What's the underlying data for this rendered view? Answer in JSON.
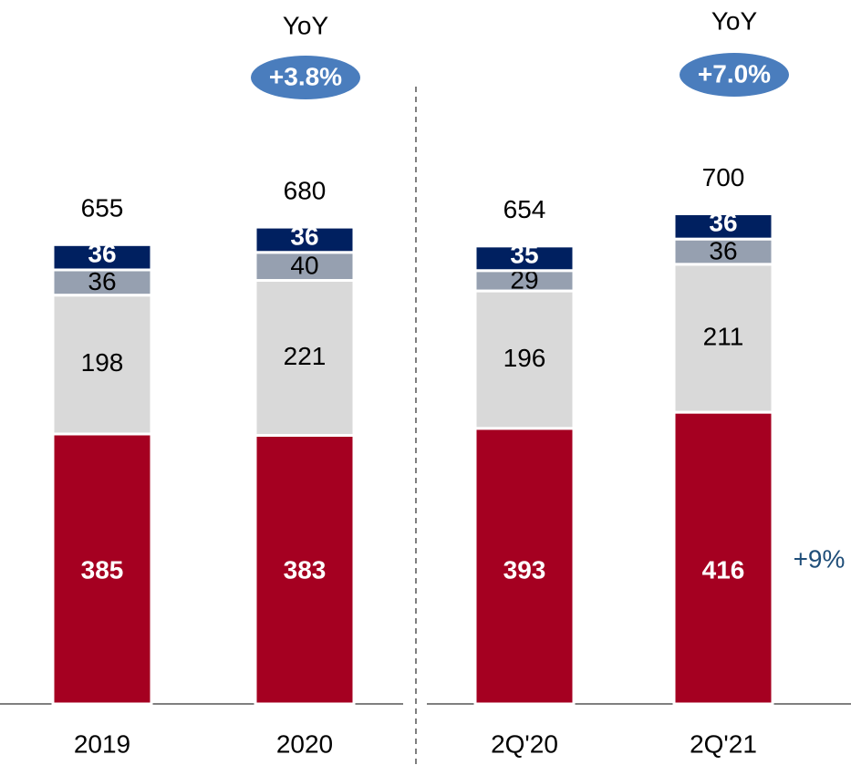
{
  "chart_data": {
    "type": "stacked_bar",
    "categories": [
      "2019",
      "2020",
      "2Q'20",
      "2Q'21"
    ],
    "series": [
      {
        "color": "#a50021",
        "values": [
          385,
          383,
          393,
          416
        ]
      },
      {
        "color": "#d9d9d9",
        "values": [
          198,
          221,
          196,
          211
        ]
      },
      {
        "color": "#96a0b0",
        "values": [
          36,
          40,
          29,
          36
        ]
      },
      {
        "color": "#002060",
        "values": [
          36,
          36,
          35,
          36
        ]
      }
    ],
    "totals": [
      655,
      680,
      654,
      700
    ],
    "annotations": [
      {
        "title": "YoY",
        "label": "+3.8%"
      },
      {
        "title": "YoY",
        "label": "+7.0%"
      }
    ],
    "side_label": "+9%"
  }
}
